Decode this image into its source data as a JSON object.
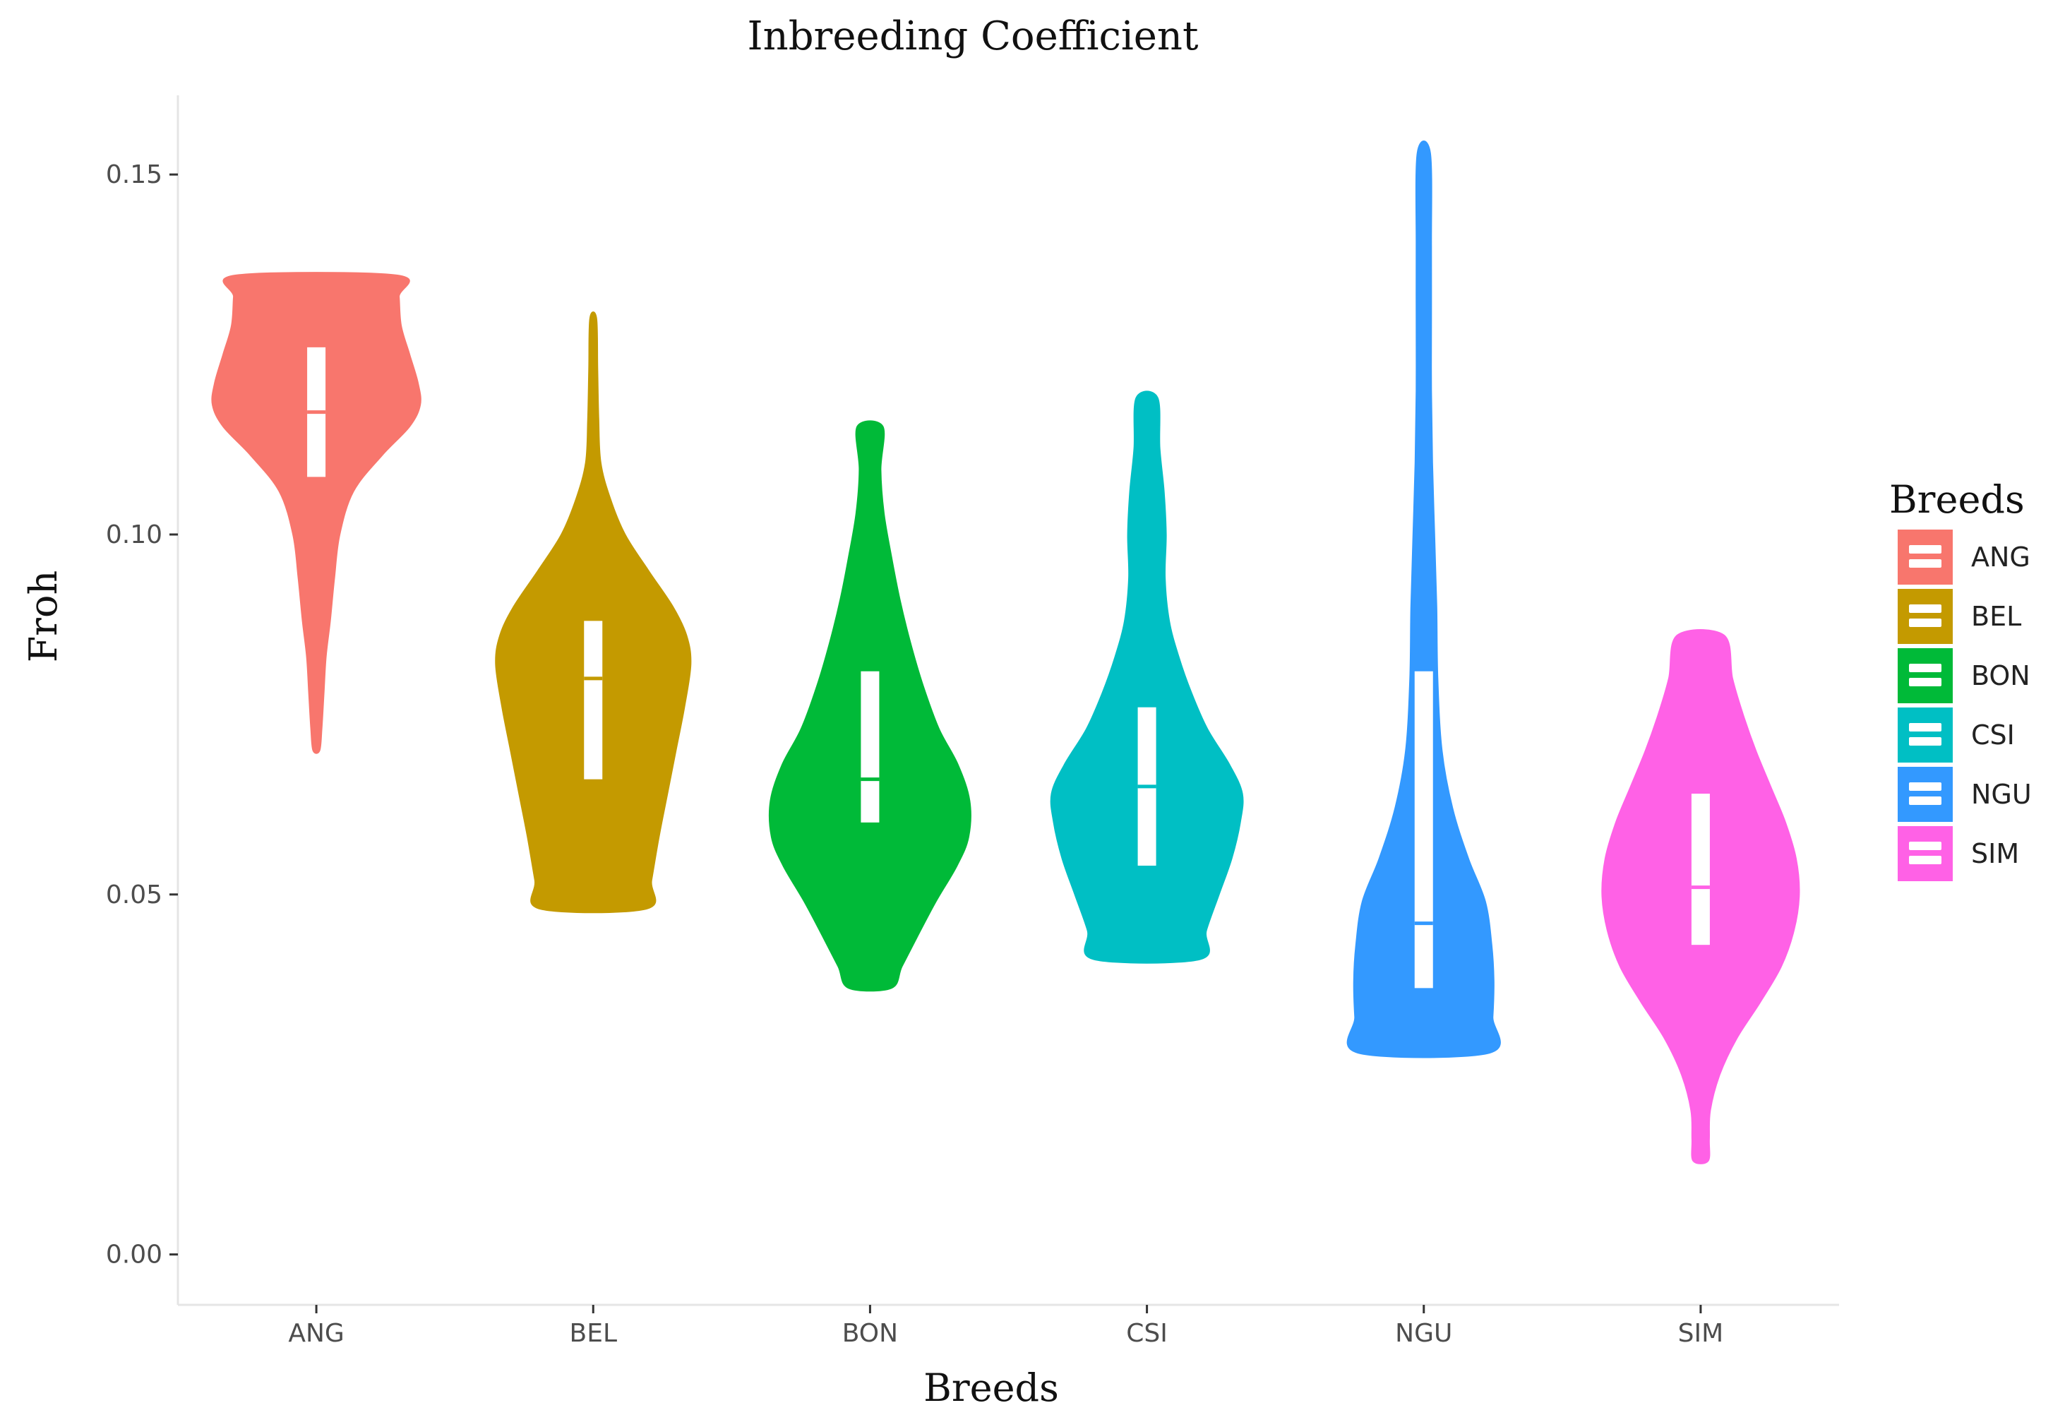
{
  "chart_data": {
    "type": "violin",
    "title": "Inbreeding Coefficient",
    "xlabel": "Breeds",
    "ylabel": "Froh",
    "ylim": [
      -0.007,
      0.161
    ],
    "yticks": [
      "0.00",
      "0.05",
      "0.10",
      "0.15"
    ],
    "yticks_values": [
      0.0,
      0.05,
      0.1,
      0.15
    ],
    "categories": [
      "ANG",
      "BEL",
      "BON",
      "CSI",
      "NGU",
      "SIM"
    ],
    "legend": {
      "title": "Breeds",
      "placement": "right"
    },
    "grid": false,
    "series": [
      {
        "name": "ANG",
        "color": "#F8766D",
        "min": 0.07,
        "max": 0.136,
        "q1": 0.108,
        "median": 0.117,
        "q3": 0.126,
        "density": [
          [
            0.07,
            0.03
          ],
          [
            0.073,
            0.05
          ],
          [
            0.078,
            0.07
          ],
          [
            0.083,
            0.09
          ],
          [
            0.088,
            0.13
          ],
          [
            0.094,
            0.17
          ],
          [
            0.1,
            0.22
          ],
          [
            0.106,
            0.35
          ],
          [
            0.111,
            0.62
          ],
          [
            0.115,
            0.88
          ],
          [
            0.118,
            0.98
          ],
          [
            0.121,
            0.96
          ],
          [
            0.125,
            0.88
          ],
          [
            0.129,
            0.8
          ],
          [
            0.133,
            0.78
          ],
          [
            0.136,
            0.76
          ]
        ]
      },
      {
        "name": "BEL",
        "color": "#C49A00",
        "min": 0.048,
        "max": 0.13,
        "q1": 0.066,
        "median": 0.08,
        "q3": 0.088,
        "density": [
          [
            0.048,
            0.5
          ],
          [
            0.052,
            0.55
          ],
          [
            0.058,
            0.62
          ],
          [
            0.064,
            0.7
          ],
          [
            0.07,
            0.78
          ],
          [
            0.076,
            0.86
          ],
          [
            0.082,
            0.92
          ],
          [
            0.086,
            0.88
          ],
          [
            0.09,
            0.75
          ],
          [
            0.095,
            0.52
          ],
          [
            0.1,
            0.3
          ],
          [
            0.105,
            0.16
          ],
          [
            0.11,
            0.07
          ],
          [
            0.116,
            0.05
          ],
          [
            0.123,
            0.04
          ],
          [
            0.13,
            0.03
          ]
        ]
      },
      {
        "name": "BON",
        "color": "#00BA38",
        "min": 0.037,
        "max": 0.115,
        "q1": 0.06,
        "median": 0.066,
        "q3": 0.081,
        "density": [
          [
            0.037,
            0.2
          ],
          [
            0.04,
            0.3
          ],
          [
            0.044,
            0.44
          ],
          [
            0.049,
            0.62
          ],
          [
            0.054,
            0.82
          ],
          [
            0.058,
            0.93
          ],
          [
            0.063,
            0.94
          ],
          [
            0.068,
            0.83
          ],
          [
            0.073,
            0.65
          ],
          [
            0.079,
            0.5
          ],
          [
            0.085,
            0.38
          ],
          [
            0.091,
            0.28
          ],
          [
            0.097,
            0.2
          ],
          [
            0.103,
            0.13
          ],
          [
            0.109,
            0.1
          ],
          [
            0.115,
            0.12
          ]
        ]
      },
      {
        "name": "CSI",
        "color": "#00BFC4",
        "min": 0.041,
        "max": 0.119,
        "q1": 0.054,
        "median": 0.065,
        "q3": 0.076,
        "density": [
          [
            0.041,
            0.5
          ],
          [
            0.045,
            0.56
          ],
          [
            0.05,
            0.68
          ],
          [
            0.055,
            0.8
          ],
          [
            0.06,
            0.88
          ],
          [
            0.064,
            0.9
          ],
          [
            0.068,
            0.78
          ],
          [
            0.073,
            0.57
          ],
          [
            0.078,
            0.42
          ],
          [
            0.083,
            0.3
          ],
          [
            0.088,
            0.21
          ],
          [
            0.094,
            0.17
          ],
          [
            0.1,
            0.18
          ],
          [
            0.106,
            0.16
          ],
          [
            0.112,
            0.12
          ],
          [
            0.119,
            0.1
          ]
        ]
      },
      {
        "name": "NGU",
        "color": "#3399FF",
        "min": 0.028,
        "max": 0.153,
        "q1": 0.037,
        "median": 0.046,
        "q3": 0.081,
        "density": [
          [
            0.028,
            0.62
          ],
          [
            0.033,
            0.65
          ],
          [
            0.038,
            0.66
          ],
          [
            0.043,
            0.64
          ],
          [
            0.049,
            0.58
          ],
          [
            0.055,
            0.42
          ],
          [
            0.062,
            0.27
          ],
          [
            0.07,
            0.17
          ],
          [
            0.08,
            0.13
          ],
          [
            0.09,
            0.12
          ],
          [
            0.1,
            0.1
          ],
          [
            0.11,
            0.08
          ],
          [
            0.12,
            0.07
          ],
          [
            0.13,
            0.07
          ],
          [
            0.14,
            0.07
          ],
          [
            0.153,
            0.06
          ]
        ]
      },
      {
        "name": "SIM",
        "color": "#FF61E6",
        "min": 0.013,
        "max": 0.086,
        "q1": 0.043,
        "median": 0.051,
        "q3": 0.064,
        "density": [
          [
            0.013,
            0.07
          ],
          [
            0.016,
            0.08
          ],
          [
            0.02,
            0.09
          ],
          [
            0.025,
            0.18
          ],
          [
            0.03,
            0.34
          ],
          [
            0.035,
            0.56
          ],
          [
            0.04,
            0.76
          ],
          [
            0.045,
            0.88
          ],
          [
            0.05,
            0.93
          ],
          [
            0.055,
            0.9
          ],
          [
            0.06,
            0.8
          ],
          [
            0.065,
            0.66
          ],
          [
            0.07,
            0.52
          ],
          [
            0.075,
            0.4
          ],
          [
            0.08,
            0.3
          ],
          [
            0.086,
            0.22
          ]
        ]
      }
    ]
  }
}
